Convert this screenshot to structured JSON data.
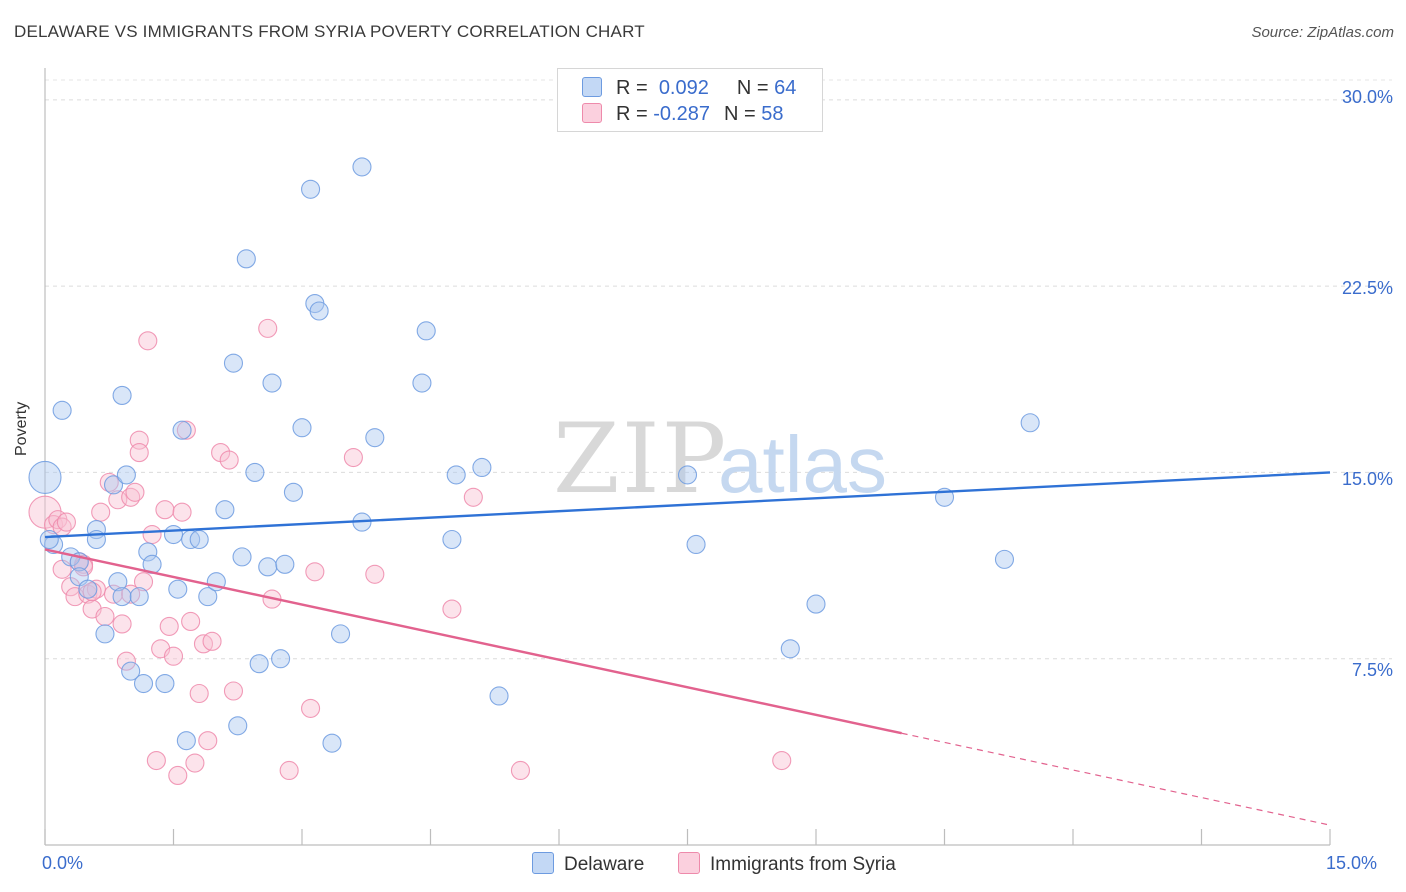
{
  "header": {
    "title": "DELAWARE VS IMMIGRANTS FROM SYRIA POVERTY CORRELATION CHART",
    "source": "Source: ZipAtlas.com"
  },
  "watermark": {
    "zip": "ZIP",
    "atlas": "atlas"
  },
  "legend": {
    "rows": [
      {
        "r_label": "R =",
        "r_value": "0.092",
        "n_label": "N =",
        "n_value": "64",
        "color": "#aac8f0",
        "border": "#6d9be0"
      },
      {
        "r_label": "R =",
        "r_value": "-0.287",
        "n_label": "N =",
        "n_value": "58",
        "color": "#f9c0d2",
        "border": "#ee8aab"
      }
    ]
  },
  "bottom_legend": {
    "delaware": "Delaware",
    "syria": "Immigrants from Syria"
  },
  "axes": {
    "ylabel": "Poverty",
    "y_ticks": [
      "30.0%",
      "22.5%",
      "15.0%",
      "7.5%"
    ],
    "x_left": "0.0%",
    "x_right": "15.0%"
  },
  "chart_data": {
    "type": "scatter",
    "title": "DELAWARE VS IMMIGRANTS FROM SYRIA POVERTY CORRELATION CHART",
    "xlabel": "",
    "ylabel": "Poverty",
    "xlim": [
      0,
      15
    ],
    "ylim": [
      0,
      30.8
    ],
    "y_ticks": [
      7.5,
      15.0,
      22.5,
      30.0
    ],
    "grid": true,
    "legend_position": "top-center",
    "series": [
      {
        "name": "Delaware",
        "color": "#6d9be0",
        "fill": "#aac8f0",
        "r": 0.092,
        "n": 64,
        "trend": {
          "x0": 0.0,
          "y0": 12.4,
          "x1": 15.0,
          "y1": 15.0
        },
        "points": [
          [
            0.0,
            14.8
          ],
          [
            0.1,
            12.1
          ],
          [
            0.2,
            17.5
          ],
          [
            0.3,
            11.6
          ],
          [
            0.4,
            11.4
          ],
          [
            0.4,
            10.8
          ],
          [
            0.5,
            10.3
          ],
          [
            0.6,
            12.7
          ],
          [
            0.6,
            12.3
          ],
          [
            0.7,
            8.5
          ],
          [
            0.8,
            14.5
          ],
          [
            0.85,
            10.6
          ],
          [
            0.9,
            18.1
          ],
          [
            0.9,
            10.0
          ],
          [
            0.95,
            14.9
          ],
          [
            1.0,
            7.0
          ],
          [
            1.1,
            10.0
          ],
          [
            1.15,
            6.5
          ],
          [
            1.2,
            11.8
          ],
          [
            1.25,
            11.3
          ],
          [
            1.4,
            6.5
          ],
          [
            1.5,
            12.5
          ],
          [
            1.55,
            10.3
          ],
          [
            1.6,
            16.7
          ],
          [
            1.65,
            4.2
          ],
          [
            1.7,
            12.3
          ],
          [
            1.8,
            12.3
          ],
          [
            1.9,
            10.0
          ],
          [
            2.0,
            10.6
          ],
          [
            2.1,
            13.5
          ],
          [
            2.2,
            19.4
          ],
          [
            2.25,
            4.8
          ],
          [
            2.3,
            11.6
          ],
          [
            2.35,
            23.6
          ],
          [
            2.45,
            15.0
          ],
          [
            2.5,
            7.3
          ],
          [
            2.6,
            11.2
          ],
          [
            2.65,
            18.6
          ],
          [
            2.75,
            7.5
          ],
          [
            2.8,
            11.3
          ],
          [
            2.9,
            14.2
          ],
          [
            3.0,
            16.8
          ],
          [
            3.1,
            26.4
          ],
          [
            3.15,
            21.8
          ],
          [
            3.2,
            21.5
          ],
          [
            3.35,
            4.1
          ],
          [
            3.45,
            8.5
          ],
          [
            3.7,
            27.3
          ],
          [
            3.7,
            13.0
          ],
          [
            3.85,
            16.4
          ],
          [
            4.4,
            18.6
          ],
          [
            4.45,
            20.7
          ],
          [
            4.75,
            12.3
          ],
          [
            4.8,
            14.9
          ],
          [
            5.3,
            6.0
          ],
          [
            5.1,
            15.2
          ],
          [
            7.5,
            14.9
          ],
          [
            7.6,
            12.1
          ],
          [
            8.7,
            7.9
          ],
          [
            9.0,
            9.7
          ],
          [
            10.5,
            14.0
          ],
          [
            11.2,
            11.5
          ],
          [
            11.5,
            17.0
          ],
          [
            0.05,
            12.3
          ]
        ]
      },
      {
        "name": "Immigrants from Syria",
        "color": "#ee8aab",
        "fill": "#f9c0d2",
        "r": -0.287,
        "n": 58,
        "trend": {
          "x0": 0.0,
          "y0": 11.9,
          "x1": 10.0,
          "y1": 4.5,
          "dashed_to_x": 15.0,
          "dashed_to_y": 0.8
        },
        "points": [
          [
            0.0,
            13.4
          ],
          [
            0.1,
            12.9
          ],
          [
            0.15,
            13.1
          ],
          [
            0.2,
            12.8
          ],
          [
            0.2,
            11.1
          ],
          [
            0.3,
            10.4
          ],
          [
            0.35,
            10.0
          ],
          [
            0.4,
            11.4
          ],
          [
            0.45,
            11.3
          ],
          [
            0.5,
            10.1
          ],
          [
            0.55,
            9.5
          ],
          [
            0.6,
            10.3
          ],
          [
            0.65,
            13.4
          ],
          [
            0.7,
            9.2
          ],
          [
            0.75,
            14.6
          ],
          [
            0.8,
            10.1
          ],
          [
            0.85,
            13.9
          ],
          [
            0.9,
            8.9
          ],
          [
            0.95,
            7.4
          ],
          [
            1.0,
            14.0
          ],
          [
            1.05,
            14.2
          ],
          [
            1.1,
            16.3
          ],
          [
            1.1,
            15.8
          ],
          [
            1.15,
            10.6
          ],
          [
            1.2,
            20.3
          ],
          [
            1.25,
            12.5
          ],
          [
            1.3,
            3.4
          ],
          [
            1.35,
            7.9
          ],
          [
            1.4,
            13.5
          ],
          [
            1.45,
            8.8
          ],
          [
            1.5,
            7.6
          ],
          [
            1.55,
            2.8
          ],
          [
            1.6,
            13.4
          ],
          [
            1.65,
            16.7
          ],
          [
            1.7,
            9.0
          ],
          [
            1.75,
            3.3
          ],
          [
            1.8,
            6.1
          ],
          [
            1.85,
            8.1
          ],
          [
            1.9,
            4.2
          ],
          [
            1.95,
            8.2
          ],
          [
            2.05,
            15.8
          ],
          [
            2.15,
            15.5
          ],
          [
            2.2,
            6.2
          ],
          [
            2.6,
            20.8
          ],
          [
            2.65,
            9.9
          ],
          [
            2.85,
            3.0
          ],
          [
            3.1,
            5.5
          ],
          [
            3.15,
            11.0
          ],
          [
            3.6,
            15.6
          ],
          [
            3.85,
            10.9
          ],
          [
            4.75,
            9.5
          ],
          [
            5.0,
            14.0
          ],
          [
            5.55,
            3.0
          ],
          [
            8.6,
            3.4
          ],
          [
            0.25,
            13.0
          ],
          [
            0.45,
            11.2
          ],
          [
            0.55,
            10.2
          ],
          [
            1.0,
            10.1
          ]
        ]
      }
    ]
  }
}
